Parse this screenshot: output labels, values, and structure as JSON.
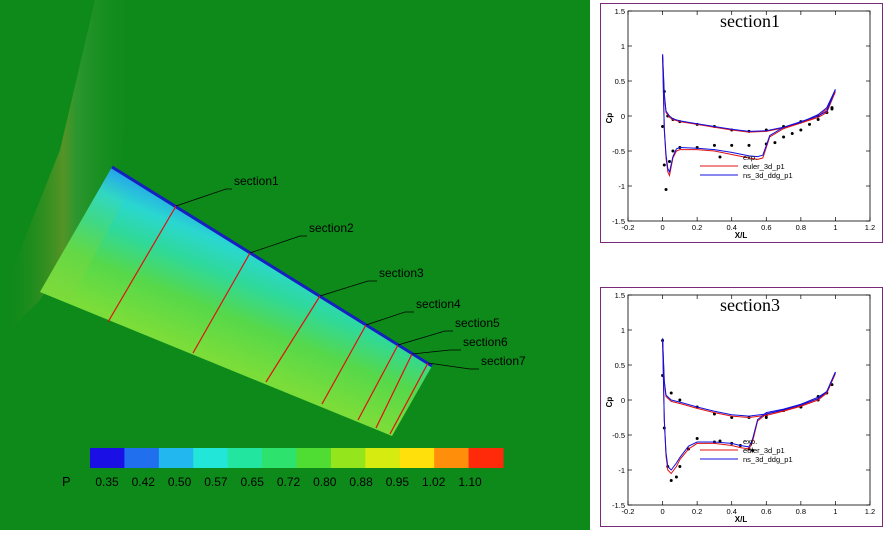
{
  "contour": {
    "background_color": "#0d8a1a",
    "variable": "P",
    "colorbar_ticks": [
      "0.35",
      "0.42",
      "0.50",
      "0.57",
      "0.65",
      "0.72",
      "0.80",
      "0.88",
      "0.95",
      "1.02",
      "1.10"
    ],
    "colorbar_colors": [
      "#1a10e6",
      "#1f6fef",
      "#22b7ee",
      "#22e6d7",
      "#22e6a0",
      "#2ee36d",
      "#4fdd34",
      "#95e51c",
      "#d6ec10",
      "#ffe00a",
      "#ff8f0a",
      "#ff2a0a"
    ],
    "section_labels": [
      "section1",
      "section2",
      "section3",
      "section4",
      "section5",
      "section6",
      "section7"
    ],
    "section_line_color": "#e01010"
  },
  "chart_data": [
    {
      "type": "line",
      "title": "section1",
      "xlabel": "X/L",
      "ylabel": "Cp",
      "xlim": [
        -0.2,
        1.2
      ],
      "ylim": [
        1.5,
        -1.5
      ],
      "xticks": [
        "-0.2",
        "0",
        "0.2",
        "0.4",
        "0.6",
        "0.8",
        "1",
        "1.2"
      ],
      "yticks": [
        "-1.5",
        "-1",
        "-0.5",
        "0",
        "0.5",
        "1",
        "1.5"
      ],
      "legend_position": "bottom-right",
      "legend": [
        "exp.",
        "euler_3d_p1",
        "ns_3d_ddg_p1"
      ],
      "series": [
        {
          "name": "exp.",
          "style": "markers",
          "color": "#000000",
          "x": [
            0.0,
            0.01,
            0.02,
            0.04,
            0.06,
            0.1,
            0.2,
            0.3,
            0.4,
            0.5,
            0.6,
            0.65,
            0.7,
            0.75,
            0.8,
            0.85,
            0.9,
            0.95,
            0.98,
            0.01,
            0.03,
            0.06,
            0.1,
            0.2,
            0.3,
            0.4,
            0.5,
            0.6,
            0.7,
            0.8,
            0.9,
            0.95,
            0.98
          ],
          "y": [
            -0.15,
            -0.7,
            -1.05,
            -0.65,
            -0.5,
            -0.45,
            -0.45,
            -0.42,
            -0.42,
            -0.42,
            -0.4,
            -0.38,
            -0.3,
            -0.25,
            -0.2,
            -0.12,
            -0.05,
            0.05,
            0.12,
            0.35,
            0.0,
            -0.05,
            -0.08,
            -0.12,
            -0.15,
            -0.2,
            -0.22,
            -0.2,
            -0.15,
            -0.08,
            0.0,
            0.05,
            0.1
          ]
        },
        {
          "name": "euler_3d_p1",
          "style": "line",
          "color": "#e01010",
          "x": [
            0.0,
            0.01,
            0.02,
            0.03,
            0.04,
            0.06,
            0.08,
            0.1,
            0.2,
            0.3,
            0.4,
            0.5,
            0.55,
            0.58,
            0.6,
            0.62,
            0.7,
            0.8,
            0.9,
            0.95,
            1.0
          ],
          "y": [
            0.85,
            -0.2,
            -0.6,
            -0.8,
            -0.85,
            -0.6,
            -0.5,
            -0.48,
            -0.48,
            -0.5,
            -0.55,
            -0.6,
            -0.62,
            -0.6,
            -0.45,
            -0.3,
            -0.18,
            -0.1,
            -0.02,
            0.05,
            0.35
          ]
        },
        {
          "name": "euler_3d_p1",
          "style": "line",
          "color": "#e01010",
          "x": [
            0.0,
            0.01,
            0.02,
            0.04,
            0.06,
            0.1,
            0.2,
            0.3,
            0.4,
            0.5,
            0.6,
            0.7,
            0.8,
            0.9,
            0.95,
            1.0
          ],
          "y": [
            0.85,
            0.3,
            0.05,
            -0.02,
            -0.05,
            -0.08,
            -0.12,
            -0.16,
            -0.2,
            -0.23,
            -0.22,
            -0.17,
            -0.1,
            0.0,
            0.1,
            0.35
          ]
        },
        {
          "name": "ns_3d_ddg_p1",
          "style": "line",
          "color": "#1010e0",
          "x": [
            0.0,
            0.01,
            0.02,
            0.03,
            0.04,
            0.06,
            0.08,
            0.1,
            0.2,
            0.3,
            0.4,
            0.5,
            0.55,
            0.58,
            0.6,
            0.62,
            0.7,
            0.8,
            0.9,
            0.95,
            1.0
          ],
          "y": [
            0.88,
            -0.18,
            -0.55,
            -0.75,
            -0.8,
            -0.58,
            -0.47,
            -0.45,
            -0.46,
            -0.48,
            -0.52,
            -0.57,
            -0.58,
            -0.56,
            -0.42,
            -0.28,
            -0.16,
            -0.08,
            0.0,
            0.07,
            0.38
          ]
        },
        {
          "name": "ns_3d_ddg_p1",
          "style": "line",
          "color": "#1010e0",
          "x": [
            0.0,
            0.01,
            0.02,
            0.04,
            0.06,
            0.1,
            0.2,
            0.3,
            0.4,
            0.5,
            0.6,
            0.7,
            0.8,
            0.9,
            0.95,
            1.0
          ],
          "y": [
            0.88,
            0.32,
            0.07,
            0.0,
            -0.04,
            -0.07,
            -0.11,
            -0.15,
            -0.19,
            -0.22,
            -0.21,
            -0.16,
            -0.09,
            0.02,
            0.12,
            0.38
          ]
        }
      ]
    },
    {
      "type": "line",
      "title": "section3",
      "xlabel": "X/L",
      "ylabel": "Cp",
      "xlim": [
        -0.2,
        1.2
      ],
      "ylim": [
        1.5,
        -1.5
      ],
      "xticks": [
        "-0.2",
        "0",
        "0.2",
        "0.4",
        "0.6",
        "0.8",
        "1",
        "1.2"
      ],
      "yticks": [
        "-1.5",
        "-1",
        "-0.5",
        "0",
        "0.5",
        "1",
        "1.5"
      ],
      "legend_position": "bottom-right",
      "legend": [
        "exp.",
        "euler_3d_p1",
        "ns_3d_ddg_p1"
      ],
      "series": [
        {
          "name": "exp.",
          "style": "markers",
          "color": "#000000",
          "x": [
            0.0,
            0.01,
            0.03,
            0.05,
            0.08,
            0.1,
            0.15,
            0.2,
            0.3,
            0.4,
            0.45,
            0.5,
            0.52,
            0.6,
            0.7,
            0.8,
            0.9,
            0.95,
            0.98,
            0.0,
            0.05,
            0.1,
            0.2,
            0.3,
            0.4,
            0.5,
            0.6,
            0.7,
            0.8,
            0.9
          ],
          "y": [
            0.35,
            -0.4,
            -0.95,
            -1.15,
            -1.1,
            -0.95,
            -0.7,
            -0.55,
            -0.6,
            -0.62,
            -0.65,
            -0.7,
            -0.72,
            -0.25,
            -0.15,
            -0.1,
            0.05,
            0.1,
            0.22,
            0.85,
            0.1,
            0.0,
            -0.1,
            -0.2,
            -0.25,
            -0.25,
            -0.22,
            -0.15,
            -0.1,
            0.0
          ]
        },
        {
          "name": "euler_3d_p1",
          "style": "line",
          "color": "#e01010",
          "x": [
            0.0,
            0.01,
            0.02,
            0.03,
            0.05,
            0.08,
            0.1,
            0.15,
            0.2,
            0.3,
            0.4,
            0.45,
            0.5,
            0.52,
            0.55,
            0.6,
            0.7,
            0.8,
            0.9,
            0.95,
            1.0
          ],
          "y": [
            0.85,
            -0.3,
            -0.8,
            -1.0,
            -1.05,
            -0.95,
            -0.85,
            -0.7,
            -0.62,
            -0.62,
            -0.65,
            -0.68,
            -0.7,
            -0.6,
            -0.3,
            -0.2,
            -0.15,
            -0.08,
            0.02,
            0.1,
            0.38
          ]
        },
        {
          "name": "euler_3d_p1",
          "style": "line",
          "color": "#e01010",
          "x": [
            0.0,
            0.01,
            0.02,
            0.05,
            0.1,
            0.2,
            0.3,
            0.4,
            0.5,
            0.6,
            0.7,
            0.8,
            0.9,
            0.95,
            1.0
          ],
          "y": [
            0.85,
            0.25,
            0.05,
            -0.02,
            -0.05,
            -0.12,
            -0.18,
            -0.23,
            -0.25,
            -0.22,
            -0.16,
            -0.09,
            0.0,
            0.1,
            0.38
          ]
        },
        {
          "name": "ns_3d_ddg_p1",
          "style": "line",
          "color": "#1010e0",
          "x": [
            0.0,
            0.01,
            0.02,
            0.03,
            0.05,
            0.08,
            0.1,
            0.15,
            0.2,
            0.3,
            0.4,
            0.45,
            0.5,
            0.52,
            0.55,
            0.6,
            0.7,
            0.8,
            0.9,
            0.95,
            1.0
          ],
          "y": [
            0.88,
            -0.28,
            -0.75,
            -0.95,
            -1.0,
            -0.9,
            -0.82,
            -0.66,
            -0.6,
            -0.6,
            -0.62,
            -0.65,
            -0.67,
            -0.56,
            -0.28,
            -0.18,
            -0.13,
            -0.06,
            0.04,
            0.12,
            0.4
          ]
        },
        {
          "name": "ns_3d_ddg_p1",
          "style": "line",
          "color": "#1010e0",
          "x": [
            0.0,
            0.01,
            0.02,
            0.05,
            0.1,
            0.2,
            0.3,
            0.4,
            0.5,
            0.6,
            0.7,
            0.8,
            0.9,
            0.95,
            1.0
          ],
          "y": [
            0.88,
            0.27,
            0.07,
            0.0,
            -0.03,
            -0.1,
            -0.16,
            -0.21,
            -0.23,
            -0.2,
            -0.14,
            -0.07,
            0.02,
            0.12,
            0.4
          ]
        }
      ]
    }
  ]
}
